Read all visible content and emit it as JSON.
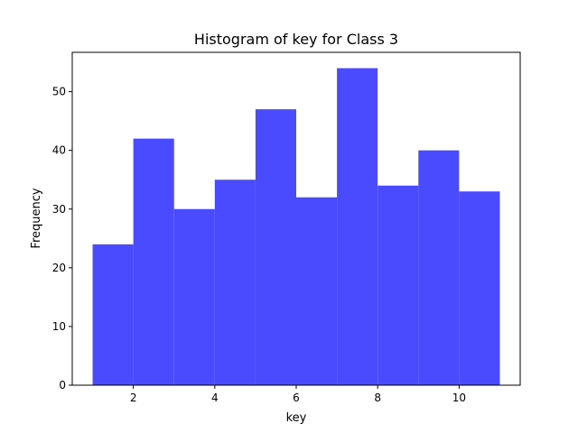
{
  "chart_data": {
    "type": "bar",
    "title": "Histogram of key for Class 3",
    "xlabel": "key",
    "ylabel": "Frequency",
    "bin_edges": [
      1,
      2,
      3,
      4,
      5,
      6,
      7,
      8,
      9,
      10,
      11
    ],
    "values": [
      24,
      42,
      30,
      35,
      47,
      32,
      54,
      34,
      40,
      33
    ],
    "xlim": [
      0.5,
      11.5
    ],
    "ylim": [
      0,
      56.7
    ],
    "xticks": [
      2,
      4,
      6,
      8,
      10
    ],
    "yticks": [
      0,
      10,
      20,
      30,
      40,
      50
    ],
    "bar_color": "#4a4aff",
    "grid": false,
    "legend": "none"
  }
}
